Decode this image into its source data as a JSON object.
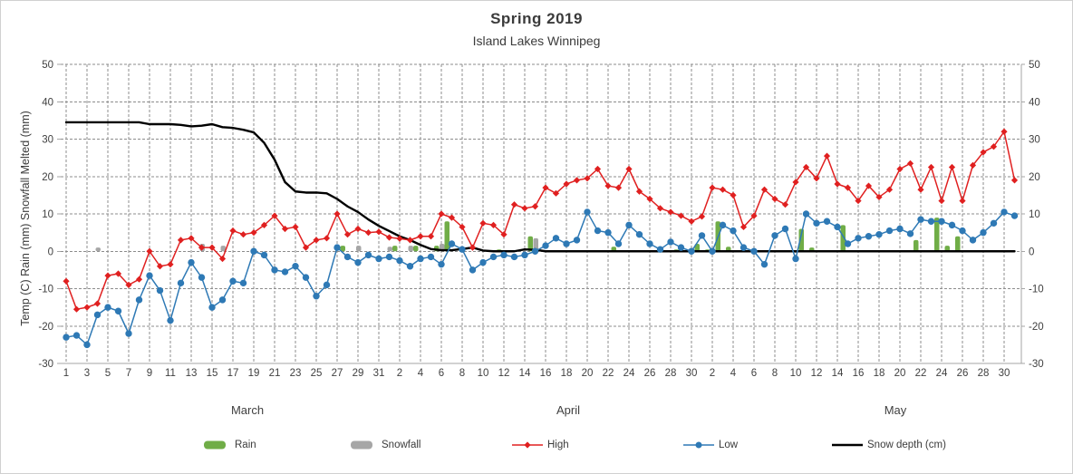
{
  "title": "Spring  2019",
  "subtitle": "Island Lakes Winnipeg",
  "y_axis_title": "Temp (C) Rain (mm) Snowfall Melted (mm)",
  "chart_data": {
    "type": "combo-bar-line",
    "grid": "dashed-both-axes",
    "y": {
      "min": -30,
      "max": 50,
      "step": 10,
      "ticks": [
        50,
        40,
        30,
        20,
        10,
        0,
        -10,
        -20,
        -30
      ],
      "shown_on": "both-sides"
    },
    "x": {
      "months": [
        {
          "name": "March",
          "num_days": 31,
          "tick_labels": [
            1,
            3,
            5,
            7,
            9,
            11,
            13,
            15,
            17,
            19,
            21,
            23,
            25,
            27,
            29,
            31
          ]
        },
        {
          "name": "April",
          "num_days": 30,
          "tick_labels": [
            2,
            4,
            6,
            8,
            10,
            12,
            14,
            16,
            18,
            20,
            22,
            24,
            26,
            28,
            30
          ]
        },
        {
          "name": "May",
          "num_days": 31,
          "tick_labels": [
            2,
            4,
            6,
            8,
            10,
            12,
            14,
            16,
            18,
            20,
            22,
            24,
            26,
            28,
            30
          ]
        }
      ]
    },
    "series": [
      {
        "name": "Rain",
        "type": "bar",
        "color": "#70AD47",
        "unit": "mm",
        "values": [
          0,
          0,
          0,
          0,
          0,
          0,
          0,
          0,
          0,
          0,
          0,
          0,
          0,
          0,
          0,
          0,
          0,
          0,
          0,
          0,
          0,
          0,
          0,
          0,
          0,
          0,
          0,
          1.5,
          0,
          0,
          0,
          0,
          1.5,
          0,
          1.5,
          0,
          1.5,
          8,
          0,
          0,
          0,
          0,
          0.5,
          0,
          0,
          4,
          0,
          0,
          0,
          0,
          0,
          0,
          0,
          1.2,
          0,
          0,
          0,
          0,
          0,
          0.5,
          0,
          2,
          0.5,
          8,
          1.2,
          0,
          0,
          0,
          0,
          0,
          0,
          6,
          1,
          0,
          0,
          7,
          0,
          0,
          0,
          0,
          0,
          0,
          3,
          0,
          9,
          1.5,
          4,
          0,
          0,
          0,
          0,
          0
        ]
      },
      {
        "name": "Snowfall",
        "type": "bar",
        "color": "#A6A6A6",
        "unit": "mm",
        "values": [
          0,
          0,
          0,
          1,
          0,
          0,
          0,
          0,
          0,
          0,
          0,
          0,
          0,
          2,
          0,
          1.5,
          0,
          0,
          0,
          0,
          0,
          0,
          0,
          0,
          0,
          0,
          0,
          0,
          1.5,
          0,
          0,
          1.2,
          0,
          1.5,
          0,
          0,
          2,
          0,
          0,
          0,
          0,
          0,
          0,
          0,
          0,
          3.5,
          0,
          0,
          0,
          0,
          0,
          0,
          0,
          0,
          0,
          0,
          0,
          0,
          0,
          0,
          0,
          0,
          0,
          0,
          0,
          0,
          0,
          0,
          0,
          0,
          0,
          0,
          0,
          0,
          0,
          0,
          0,
          0,
          0,
          0,
          0,
          0,
          0,
          0,
          0,
          0,
          0,
          0,
          0,
          0,
          0,
          0
        ]
      },
      {
        "name": "High",
        "type": "line",
        "marker": "diamond",
        "color": "#E02020",
        "unit": "C",
        "values": [
          -8,
          -15.5,
          -15,
          -14,
          -6.5,
          -6,
          -9,
          -7.5,
          0,
          -4,
          -3.5,
          3,
          3.5,
          1,
          1,
          -2,
          5.5,
          4.5,
          5,
          7,
          9.5,
          6,
          6.5,
          1,
          3,
          3.5,
          10,
          4.5,
          6,
          5,
          5.2,
          3.7,
          3.4,
          3,
          4,
          4,
          10,
          9,
          6.5,
          1,
          7.5,
          7,
          4.5,
          12.5,
          11.5,
          12,
          17,
          15.5,
          18,
          19,
          19.5,
          22,
          17.5,
          17,
          22,
          16,
          14,
          11.5,
          10.5,
          9.5,
          8,
          9.3,
          17,
          16.5,
          15,
          6.5,
          9.5,
          16.5,
          14,
          12.5,
          18.5,
          22.5,
          19.5,
          25.5,
          18,
          17,
          13.5,
          17.5,
          14.5,
          16.5,
          22,
          23.5,
          16.5,
          22.5,
          13.5,
          22.5,
          13.5,
          23,
          26.5,
          28,
          32,
          19
        ]
      },
      {
        "name": "Low",
        "type": "line",
        "marker": "circle",
        "color": "#2E79B5",
        "unit": "C",
        "values": [
          -23,
          -22.5,
          -25,
          -17,
          -15,
          -16,
          -22,
          -13,
          -6.5,
          -10.5,
          -18.5,
          -8.5,
          -3,
          -7,
          -15,
          -13,
          -8,
          -8.5,
          0,
          -1,
          -5,
          -5.5,
          -4,
          -7,
          -12,
          -9,
          1,
          -1.5,
          -3,
          -1,
          -2,
          -1.5,
          -2.5,
          -4,
          -2,
          -1.5,
          -3.5,
          2,
          0.5,
          -5,
          -3,
          -1.5,
          -1,
          -1.5,
          -1,
          0,
          1.5,
          3.5,
          2,
          3,
          10.5,
          5.5,
          5,
          2,
          7,
          4.5,
          2,
          0.5,
          2.5,
          1,
          0,
          4.2,
          0,
          7,
          5.5,
          1,
          0,
          -3.5,
          4.2,
          6,
          -2,
          10,
          7.5,
          8,
          6.5,
          2,
          3.5,
          4,
          4.5,
          5.5,
          6,
          4.7,
          8.5,
          8,
          8,
          7,
          5.5,
          3,
          5,
          7.5,
          10.5,
          9.5
        ]
      },
      {
        "name": "Snow depth (cm)",
        "type": "line",
        "marker": "none",
        "color": "#000000",
        "unit": "cm",
        "values": [
          34.5,
          34.5,
          34.5,
          34.5,
          34.5,
          34.5,
          34.5,
          34.5,
          34,
          34,
          34,
          33.8,
          33.4,
          33.6,
          34,
          33.2,
          33,
          32.5,
          31.8,
          29,
          24.5,
          18.5,
          16,
          15.7,
          15.7,
          15.5,
          14,
          12,
          10.5,
          8.5,
          6.8,
          5.4,
          4,
          3,
          1.7,
          0.6,
          0.3,
          0.3,
          0.6,
          1,
          0.2,
          0,
          0,
          0,
          0.5,
          0.4,
          0,
          0,
          0,
          0,
          0,
          0,
          0,
          0,
          0,
          0,
          0,
          0,
          0,
          0,
          0,
          0,
          0,
          0,
          0,
          0,
          0,
          0,
          0,
          0,
          0,
          0,
          0,
          0,
          0,
          0,
          0,
          0,
          0,
          0,
          0,
          0,
          0,
          0,
          0,
          0,
          0,
          0,
          0,
          0,
          0,
          0
        ]
      }
    ]
  }
}
